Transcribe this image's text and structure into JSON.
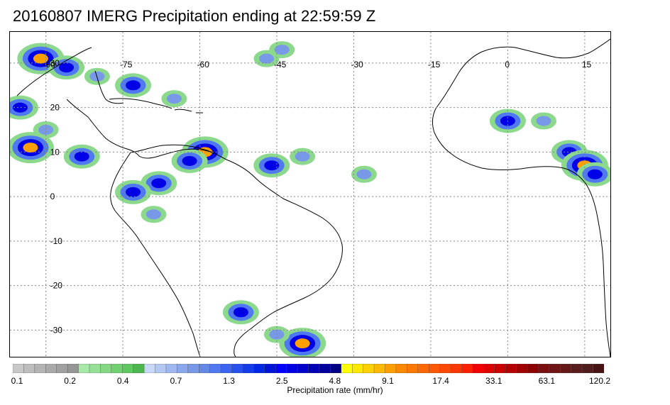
{
  "title": "20160807 IMERG Precipitation ending at 22:59:59 Z",
  "map": {
    "lon_labels": [
      "-90",
      "-75",
      "-60",
      "-45",
      "-30",
      "-15",
      "0",
      "15"
    ],
    "lat_labels": [
      "30",
      "20",
      "10",
      "0",
      "-10",
      "-20",
      "-30"
    ],
    "lon_range": [
      -97,
      20
    ],
    "lat_range": [
      37,
      -36
    ],
    "gridlines": true
  },
  "colorbar": {
    "labels": [
      "0.1",
      "0.2",
      "0.4",
      "0.7",
      "1.3",
      "2.5",
      "4.8",
      "9.1",
      "17.4",
      "33.1",
      "63.1",
      "120.2"
    ],
    "title": "Precipitation rate (mm/hr)",
    "colors": [
      "#c8c8c8",
      "#bebebe",
      "#b4b4b4",
      "#aaaaaa",
      "#a0a0a0",
      "#969696",
      "#a8e8a8",
      "#96e096",
      "#84d884",
      "#72d072",
      "#60c860",
      "#4eb64e",
      "#c8d8f8",
      "#b4c8f4",
      "#a0b8f0",
      "#8ca8ec",
      "#7898e8",
      "#6488e4",
      "#5078f0",
      "#3c64f0",
      "#2850ec",
      "#143ce8",
      "#0028e4",
      "#0014d8",
      "#0000ff",
      "#0000e6",
      "#0000cc",
      "#0000b4",
      "#00009c",
      "#000084",
      "#ffff00",
      "#ffe800",
      "#ffd000",
      "#ffb800",
      "#ffa000",
      "#ff8800",
      "#ff7800",
      "#ff6800",
      "#ff5800",
      "#ff4800",
      "#ff3800",
      "#ff2000",
      "#f00000",
      "#dc0000",
      "#c80000",
      "#b40000",
      "#a00000",
      "#8c0000",
      "#7a1010",
      "#6e1414",
      "#641818",
      "#5a1c1c",
      "#501c1c",
      "#461414"
    ]
  },
  "precip_cells": [
    {
      "lon": -91,
      "lat": 31,
      "intensity": 4
    },
    {
      "lon": -86,
      "lat": 29,
      "intensity": 3
    },
    {
      "lon": -80,
      "lat": 27,
      "intensity": 2
    },
    {
      "lon": -95,
      "lat": 20,
      "intensity": 3
    },
    {
      "lon": -90,
      "lat": 15,
      "intensity": 2
    },
    {
      "lon": -93,
      "lat": 11,
      "intensity": 4
    },
    {
      "lon": -83,
      "lat": 9,
      "intensity": 3
    },
    {
      "lon": -73,
      "lat": 25,
      "intensity": 3
    },
    {
      "lon": -65,
      "lat": 22,
      "intensity": 2
    },
    {
      "lon": -59,
      "lat": 10,
      "intensity": 4
    },
    {
      "lon": -62,
      "lat": 8,
      "intensity": 3
    },
    {
      "lon": -68,
      "lat": 3,
      "intensity": 3
    },
    {
      "lon": -73,
      "lat": 1,
      "intensity": 3
    },
    {
      "lon": -69,
      "lat": -4,
      "intensity": 2
    },
    {
      "lon": -46,
      "lat": 7,
      "intensity": 3
    },
    {
      "lon": -40,
      "lat": 9,
      "intensity": 2
    },
    {
      "lon": -28,
      "lat": 5,
      "intensity": 2
    },
    {
      "lon": 0,
      "lat": 17,
      "intensity": 3
    },
    {
      "lon": 7,
      "lat": 17,
      "intensity": 2
    },
    {
      "lon": 12,
      "lat": 10,
      "intensity": 3
    },
    {
      "lon": 15,
      "lat": 7,
      "intensity": 4
    },
    {
      "lon": 17,
      "lat": 5,
      "intensity": 3
    },
    {
      "lon": -52,
      "lat": -26,
      "intensity": 3
    },
    {
      "lon": -40,
      "lat": -33,
      "intensity": 4
    },
    {
      "lon": -45,
      "lat": -31,
      "intensity": 2
    },
    {
      "lon": -47,
      "lat": 31,
      "intensity": 2
    },
    {
      "lon": -44,
      "lat": 33,
      "intensity": 2
    }
  ]
}
